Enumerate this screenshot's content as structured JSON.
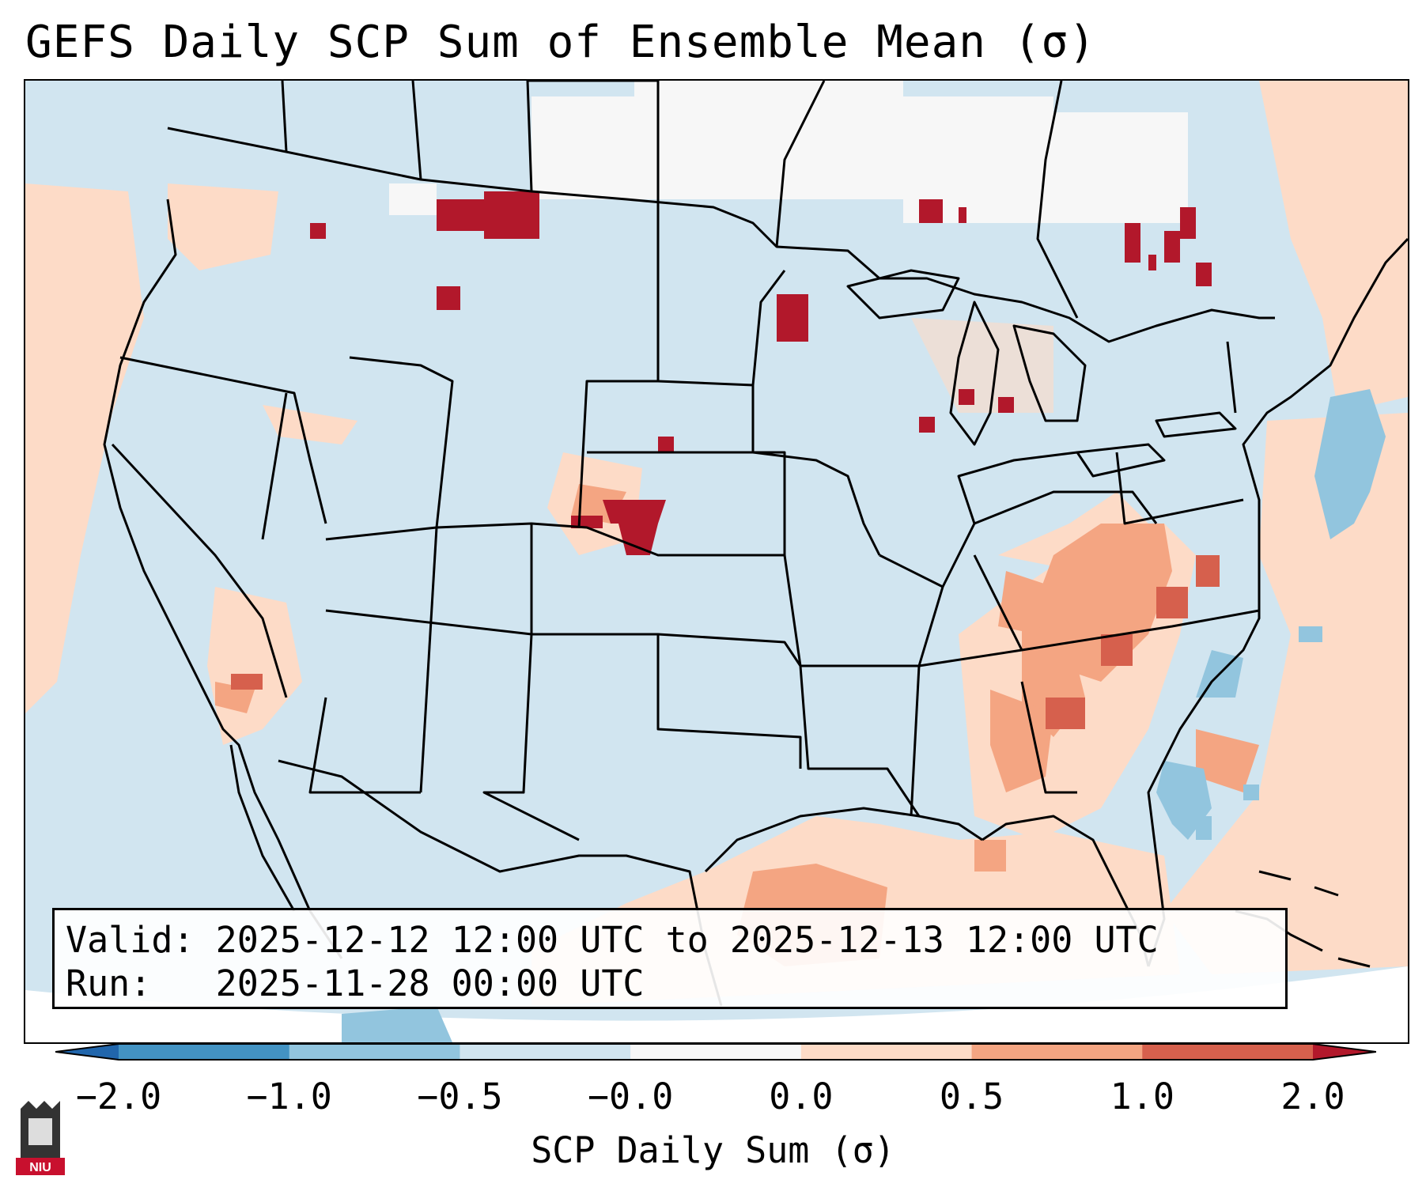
{
  "title": "GEFS Daily SCP Sum of Ensemble Mean (σ)",
  "info": {
    "valid_label": "Valid:",
    "valid_value": "2025-12-12 12:00 UTC to 2025-12-13 12:00 UTC",
    "run_label": "Run:",
    "run_value": "2025-11-28 00:00 UTC"
  },
  "colorbar": {
    "label": "SCP Daily Sum (σ)",
    "ticks": [
      "−2.0",
      "−1.0",
      "−0.5",
      "−0.0",
      "0.0",
      "0.5",
      "1.0",
      "2.0"
    ],
    "colors": [
      "#4393c3",
      "#92c5de",
      "#d1e5f0",
      "#f7f7f7",
      "#fddbc7",
      "#f4a582",
      "#d6604d"
    ],
    "under_color": "#2166ac",
    "over_color": "#b2182b"
  },
  "logo": {
    "text": "NIU"
  }
}
